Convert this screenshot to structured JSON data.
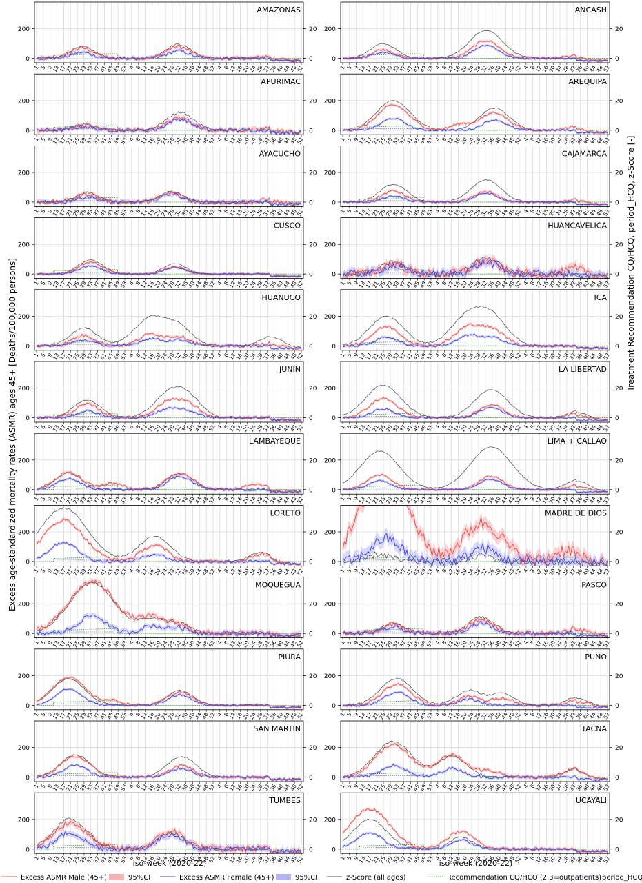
{
  "figure": {
    "ylabel_left": "Excess age-standardized mortality rates (ASMR) ages 45+ [Deaths/100,000 persons]",
    "ylabel_right": "Treatment Recommendation CQ/HCQ, period_HCQ, z-Score [-]",
    "xlabel": "iso-week (2020-22)"
  },
  "legend": [
    {
      "label": "Excess ASMR Male (45+)",
      "kind": "line",
      "color": "#f05050"
    },
    {
      "label": "95%CI",
      "kind": "patch",
      "color": "#f4b4b4"
    },
    {
      "label": "Excess ASMR Female (45+)",
      "kind": "line",
      "color": "#4a4ae8"
    },
    {
      "label": "95%CI",
      "kind": "patch",
      "color": "#b4b4f4"
    },
    {
      "label": "z-Score (all ages)",
      "kind": "line",
      "color": "#555555"
    },
    {
      "label": "Recommendation CQ/HCQ (2,3=outpatients)",
      "kind": "dotted",
      "color": "#2ca02c"
    },
    {
      "label": "period_HCQ",
      "kind": "dotted",
      "color": "#9467bd"
    }
  ],
  "chart_data": {
    "type": "line",
    "xlabel": "iso-week (2020-22)",
    "ylabel": "Excess age-standardized mortality rates (ASMR) ages 45+ [Deaths/100,000 persons]",
    "ylabel_right": "Treatment Recommendation CQ/HCQ, period_HCQ, z-Score [-]",
    "ylim": [
      -30,
      380
    ],
    "yticks": [
      0,
      200
    ],
    "ylim_right": [
      -3,
      38
    ],
    "yticks_right": [
      0,
      20
    ],
    "grid": true,
    "legend_position": "bottom",
    "x_tick_labels": [
      "1",
      "5",
      "9",
      "13",
      "17",
      "21",
      "25",
      "29",
      "33",
      "37",
      "41",
      "45",
      "49",
      "53",
      "4",
      "8",
      "12",
      "16",
      "20",
      "24",
      "28",
      "32",
      "36",
      "40",
      "44",
      "48",
      "52",
      "4",
      "8",
      "12",
      "16",
      "20",
      "24",
      "28",
      "32",
      "36",
      "40",
      "44",
      "48",
      "52"
    ],
    "series_styles": {
      "male": {
        "name": "Excess ASMR Male (45+)",
        "color": "#f05050"
      },
      "female": {
        "name": "Excess ASMR Female (45+)",
        "color": "#4a4ae8"
      },
      "z": {
        "name": "z-Score (all ages)",
        "color": "#555555"
      },
      "rec": {
        "name": "Recommendation CQ/HCQ (2,3=outpatients)",
        "color": "#2ca02c"
      },
      "period": {
        "name": "period_HCQ",
        "color": "#9467bd"
      }
    },
    "panels": [
      {
        "region": "AMAZONAS",
        "male_peaks": [
          [
            27,
            70
          ],
          [
            84,
            80
          ],
          [
            138,
            15
          ]
        ],
        "female_peaks": [
          [
            27,
            40
          ],
          [
            84,
            50
          ]
        ],
        "z_peaks": [
          [
            27,
            80
          ],
          [
            84,
            95
          ]
        ],
        "noise": 12
      },
      {
        "region": "ANCASH",
        "male_peaks": [
          [
            24,
            60
          ],
          [
            85,
            120
          ],
          [
            138,
            18
          ]
        ],
        "female_peaks": [
          [
            24,
            40
          ],
          [
            85,
            90
          ]
        ],
        "z_peaks": [
          [
            24,
            100
          ],
          [
            85,
            190
          ]
        ],
        "noise": 8
      },
      {
        "region": "APURIMAC",
        "male_peaks": [
          [
            28,
            35
          ],
          [
            85,
            85
          ],
          [
            140,
            15
          ]
        ],
        "female_peaks": [
          [
            28,
            25
          ],
          [
            85,
            75
          ]
        ],
        "z_peaks": [
          [
            28,
            40
          ],
          [
            85,
            120
          ]
        ],
        "noise": 15
      },
      {
        "region": "AREQUIPA",
        "male_peaks": [
          [
            30,
            170
          ],
          [
            70,
            40
          ],
          [
            90,
            120
          ],
          [
            138,
            25
          ]
        ],
        "female_peaks": [
          [
            30,
            80
          ],
          [
            90,
            70
          ]
        ],
        "z_peaks": [
          [
            30,
            200
          ],
          [
            90,
            150
          ]
        ],
        "noise": 8
      },
      {
        "region": "AYACUCHO",
        "male_peaks": [
          [
            30,
            55
          ],
          [
            80,
            60
          ],
          [
            140,
            20
          ]
        ],
        "female_peaks": [
          [
            30,
            35
          ],
          [
            80,
            55
          ]
        ],
        "z_peaks": [
          [
            30,
            65
          ],
          [
            80,
            70
          ]
        ],
        "noise": 14
      },
      {
        "region": "CAJAMARCA",
        "male_peaks": [
          [
            30,
            75
          ],
          [
            85,
            70
          ],
          [
            140,
            20
          ]
        ],
        "female_peaks": [
          [
            30,
            40
          ],
          [
            85,
            60
          ]
        ],
        "z_peaks": [
          [
            30,
            120
          ],
          [
            85,
            150
          ]
        ],
        "noise": 8
      },
      {
        "region": "CUSCO",
        "male_peaks": [
          [
            32,
            80
          ],
          [
            82,
            50
          ]
        ],
        "female_peaks": [
          [
            32,
            55
          ],
          [
            82,
            45
          ]
        ],
        "z_peaks": [
          [
            32,
            95
          ],
          [
            82,
            70
          ]
        ],
        "noise": 6
      },
      {
        "region": "HUANCAVELICA",
        "male_peaks": [
          [
            30,
            70
          ],
          [
            85,
            90
          ],
          [
            140,
            40
          ]
        ],
        "female_peaks": [
          [
            30,
            55
          ],
          [
            85,
            80
          ]
        ],
        "z_peaks": [
          [
            30,
            80
          ],
          [
            85,
            110
          ]
        ],
        "noise": 30
      },
      {
        "region": "HUANUCO",
        "male_peaks": [
          [
            28,
            70
          ],
          [
            68,
            80
          ],
          [
            85,
            60
          ],
          [
            140,
            20
          ]
        ],
        "female_peaks": [
          [
            28,
            40
          ],
          [
            68,
            50
          ],
          [
            85,
            40
          ]
        ],
        "z_peaks": [
          [
            28,
            120
          ],
          [
            68,
            190
          ],
          [
            85,
            110
          ],
          [
            140,
            70
          ]
        ],
        "noise": 10
      },
      {
        "region": "ICA",
        "male_peaks": [
          [
            26,
            130
          ],
          [
            75,
            130
          ],
          [
            90,
            90
          ]
        ],
        "female_peaks": [
          [
            26,
            60
          ],
          [
            75,
            70
          ],
          [
            90,
            50
          ]
        ],
        "z_peaks": [
          [
            26,
            200
          ],
          [
            75,
            210
          ],
          [
            90,
            150
          ]
        ],
        "noise": 10
      },
      {
        "region": "JUNIN",
        "male_peaks": [
          [
            30,
            90
          ],
          [
            78,
            100
          ],
          [
            90,
            80
          ]
        ],
        "female_peaks": [
          [
            30,
            45
          ],
          [
            78,
            60
          ],
          [
            90,
            40
          ]
        ],
        "z_peaks": [
          [
            30,
            120
          ],
          [
            78,
            150
          ],
          [
            90,
            120
          ]
        ],
        "noise": 10
      },
      {
        "region": "LA LIBERTAD",
        "male_peaks": [
          [
            24,
            130
          ],
          [
            88,
            90
          ],
          [
            140,
            30
          ]
        ],
        "female_peaks": [
          [
            24,
            60
          ],
          [
            88,
            70
          ]
        ],
        "z_peaks": [
          [
            24,
            220
          ],
          [
            88,
            190
          ],
          [
            140,
            50
          ]
        ],
        "noise": 8
      },
      {
        "region": "LAMBAYEQUE",
        "male_peaks": [
          [
            19,
            115
          ],
          [
            45,
            40
          ],
          [
            85,
            110
          ],
          [
            130,
            35
          ]
        ],
        "female_peaks": [
          [
            19,
            75
          ],
          [
            85,
            90
          ]
        ],
        "z_peaks": [
          [
            19,
            110
          ],
          [
            85,
            110
          ]
        ],
        "noise": 10
      },
      {
        "region": "LIMA + CALLAO",
        "male_peaks": [
          [
            22,
            100
          ],
          [
            88,
            90
          ],
          [
            140,
            35
          ]
        ],
        "female_peaks": [
          [
            22,
            60
          ],
          [
            88,
            70
          ]
        ],
        "z_peaks": [
          [
            22,
            260
          ],
          [
            88,
            290
          ],
          [
            140,
            70
          ]
        ],
        "noise": 6
      },
      {
        "region": "LORETO",
        "male_peaks": [
          [
            16,
            280
          ],
          [
            70,
            110
          ],
          [
            133,
            50
          ]
        ],
        "female_peaks": [
          [
            16,
            130
          ],
          [
            70,
            50
          ]
        ],
        "z_peaks": [
          [
            16,
            360
          ],
          [
            70,
            170
          ],
          [
            133,
            60
          ]
        ],
        "noise": 12
      },
      {
        "region": "MADRE DE DIOS",
        "male_peaks": [
          [
            22,
            350
          ],
          [
            28,
            300
          ],
          [
            83,
            260
          ],
          [
            133,
            80
          ]
        ],
        "female_peaks": [
          [
            22,
            100
          ],
          [
            30,
            80
          ],
          [
            83,
            90
          ]
        ],
        "z_peaks": [
          [
            22,
            50
          ],
          [
            83,
            40
          ]
        ],
        "noise": 45
      },
      {
        "region": "MOQUEGUA",
        "male_peaks": [
          [
            33,
            350
          ],
          [
            68,
            100
          ],
          [
            84,
            60
          ]
        ],
        "female_peaks": [
          [
            33,
            120
          ],
          [
            68,
            50
          ],
          [
            84,
            40
          ]
        ],
        "z_peaks": [
          [
            33,
            340
          ],
          [
            68,
            90
          ],
          [
            84,
            70
          ]
        ],
        "noise": 18
      },
      {
        "region": "PASCO",
        "male_peaks": [
          [
            30,
            60
          ],
          [
            82,
            90
          ],
          [
            140,
            40
          ]
        ],
        "female_peaks": [
          [
            30,
            40
          ],
          [
            82,
            70
          ]
        ],
        "z_peaks": [
          [
            30,
            70
          ],
          [
            82,
            110
          ]
        ],
        "noise": 16
      },
      {
        "region": "PIURA",
        "male_peaks": [
          [
            19,
            190
          ],
          [
            45,
            30
          ],
          [
            85,
            90
          ]
        ],
        "female_peaks": [
          [
            19,
            110
          ],
          [
            85,
            70
          ]
        ],
        "z_peaks": [
          [
            19,
            180
          ],
          [
            85,
            100
          ]
        ],
        "noise": 8
      },
      {
        "region": "PUNO",
        "male_peaks": [
          [
            32,
            140
          ],
          [
            75,
            60
          ],
          [
            95,
            50
          ],
          [
            140,
            40
          ]
        ],
        "female_peaks": [
          [
            32,
            90
          ],
          [
            75,
            40
          ]
        ],
        "z_peaks": [
          [
            32,
            180
          ],
          [
            75,
            100
          ],
          [
            95,
            80
          ],
          [
            140,
            60
          ]
        ],
        "noise": 10
      },
      {
        "region": "SAN MARTIN",
        "male_peaks": [
          [
            23,
            140
          ],
          [
            86,
            80
          ]
        ],
        "female_peaks": [
          [
            23,
            80
          ],
          [
            86,
            60
          ]
        ],
        "z_peaks": [
          [
            23,
            150
          ],
          [
            86,
            140
          ]
        ],
        "noise": 10
      },
      {
        "region": "TACNA",
        "male_peaks": [
          [
            30,
            220
          ],
          [
            65,
            150
          ],
          [
            88,
            40
          ],
          [
            138,
            60
          ]
        ],
        "female_peaks": [
          [
            30,
            80
          ],
          [
            65,
            60
          ]
        ],
        "z_peaks": [
          [
            30,
            240
          ],
          [
            65,
            140
          ],
          [
            138,
            60
          ]
        ],
        "noise": 12
      },
      {
        "region": "TUMBES",
        "male_peaks": [
          [
            20,
            180
          ],
          [
            80,
            120
          ]
        ],
        "female_peaks": [
          [
            20,
            110
          ],
          [
            80,
            100
          ]
        ],
        "z_peaks": [
          [
            20,
            200
          ],
          [
            80,
            110
          ]
        ],
        "noise": 22
      },
      {
        "region": "UCAYALI",
        "male_peaks": [
          [
            16,
            270
          ],
          [
            70,
            120
          ]
        ],
        "female_peaks": [
          [
            16,
            110
          ],
          [
            70,
            60
          ]
        ],
        "z_peaks": [
          [
            16,
            200
          ],
          [
            70,
            80
          ]
        ],
        "noise": 10
      }
    ]
  }
}
